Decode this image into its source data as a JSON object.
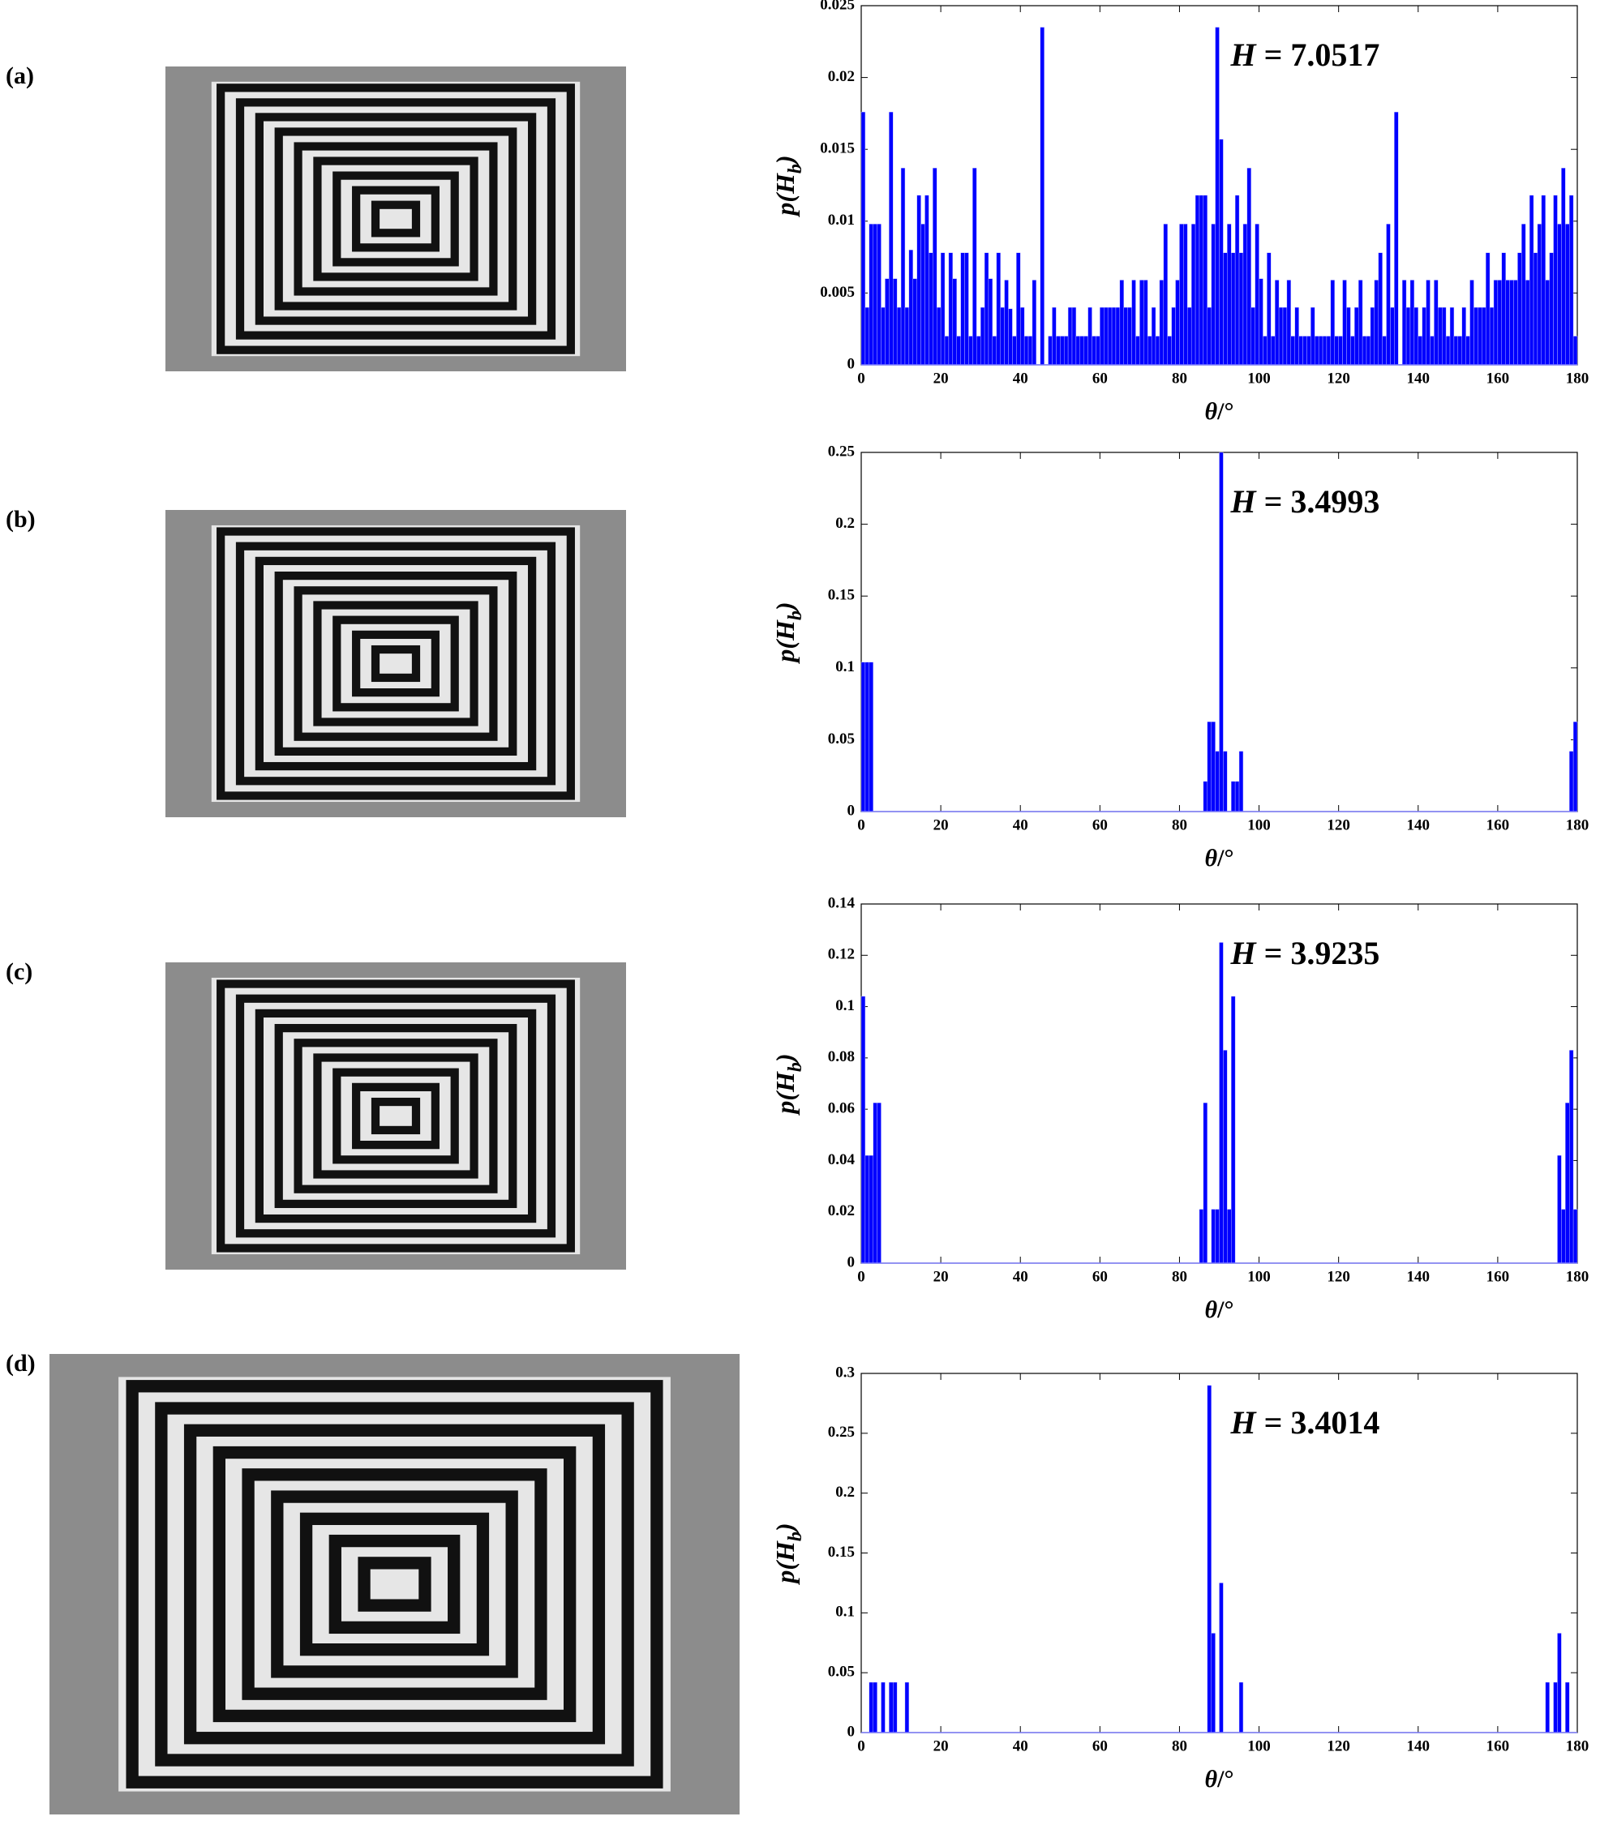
{
  "chart_data": [
    {
      "type": "histogram",
      "label": "(a)",
      "annotation": [
        "H",
        " = 7.0517"
      ],
      "xlabel": [
        "θ",
        "/°"
      ],
      "ylabel": [
        "p(H",
        "b",
        ")"
      ],
      "color": "#0000ff",
      "bins": [
        0,
        1,
        2,
        3,
        4,
        5,
        6,
        7,
        8,
        9,
        10,
        11,
        12,
        13,
        14,
        15,
        16,
        17,
        18,
        19,
        20,
        21,
        22,
        23,
        24,
        25,
        26,
        27,
        28,
        29,
        30,
        31,
        32,
        33,
        34,
        35,
        36,
        37,
        38,
        39,
        40,
        41,
        42,
        43,
        44,
        45,
        46,
        47,
        48,
        49,
        50,
        51,
        52,
        53,
        54,
        55,
        56,
        57,
        58,
        59,
        60,
        61,
        62,
        63,
        64,
        65,
        66,
        67,
        68,
        69,
        70,
        71,
        72,
        73,
        74,
        75,
        76,
        77,
        78,
        79,
        80,
        81,
        82,
        83,
        84,
        85,
        86,
        87,
        88,
        89,
        90,
        91,
        92,
        93,
        94,
        95,
        96,
        97,
        98,
        99,
        100,
        101,
        102,
        103,
        104,
        105,
        106,
        107,
        108,
        109,
        110,
        111,
        112,
        113,
        114,
        115,
        116,
        117,
        118,
        119,
        120,
        121,
        122,
        123,
        124,
        125,
        126,
        127,
        128,
        129,
        130,
        131,
        132,
        133,
        134,
        135,
        136,
        137,
        138,
        139,
        140,
        141,
        142,
        143,
        144,
        145,
        146,
        147,
        148,
        149,
        150,
        151,
        152,
        153,
        154,
        155,
        156,
        157,
        158,
        159,
        160,
        161,
        162,
        163,
        164,
        165,
        166,
        167,
        168,
        169,
        170,
        171,
        172,
        173,
        174,
        175,
        176,
        177,
        178,
        179,
        180
      ],
      "values": [
        0.0176,
        0.004,
        0.0098,
        0.0098,
        0.0098,
        0.004,
        0.006,
        0.0176,
        0.006,
        0.004,
        0.0137,
        0.004,
        0.008,
        0.006,
        0.0118,
        0.0098,
        0.0118,
        0.0078,
        0.0137,
        0.004,
        0.0078,
        0.002,
        0.0078,
        0.006,
        0.002,
        0.0078,
        0.0078,
        0.002,
        0.0137,
        0.002,
        0.004,
        0.0078,
        0.006,
        0.002,
        0.0078,
        0.004,
        0.0059,
        0.0039,
        0.002,
        0.0078,
        0.004,
        0.002,
        0.002,
        0.0059,
        0,
        0.0235,
        0,
        0.002,
        0.004,
        0.002,
        0.002,
        0.002,
        0.004,
        0.004,
        0.002,
        0.002,
        0.002,
        0.004,
        0.002,
        0.002,
        0.004,
        0.004,
        0.004,
        0.004,
        0.004,
        0.0059,
        0.004,
        0.004,
        0.0059,
        0.002,
        0.0059,
        0.0059,
        0.002,
        0.004,
        0.002,
        0.0059,
        0.0098,
        0.002,
        0.004,
        0.0059,
        0.0098,
        0.0098,
        0.004,
        0.0098,
        0.0118,
        0.0118,
        0.0118,
        0.004,
        0.0098,
        0.0235,
        0.0157,
        0.0078,
        0.0098,
        0.0078,
        0.0118,
        0.0078,
        0.0098,
        0.0137,
        0.004,
        0.0098,
        0.006,
        0.002,
        0.0078,
        0.002,
        0.0059,
        0.004,
        0.004,
        0.0059,
        0.002,
        0.004,
        0.002,
        0.002,
        0.002,
        0.004,
        0.002,
        0.002,
        0.002,
        0.002,
        0.0059,
        0.002,
        0.002,
        0.0059,
        0.004,
        0.002,
        0.004,
        0.0059,
        0.002,
        0.002,
        0.004,
        0.0059,
        0.0078,
        0.002,
        0.0098,
        0.004,
        0.0176,
        0,
        0.0059,
        0.004,
        0.0059,
        0.004,
        0.002,
        0.004,
        0.0059,
        0.002,
        0.0059,
        0.004,
        0.004,
        0.002,
        0.004,
        0.002,
        0.002,
        0.004,
        0.002,
        0.0059,
        0.004,
        0.004,
        0.004,
        0.0078,
        0.004,
        0.0059,
        0.0059,
        0.0078,
        0.0059,
        0.0059,
        0.0059,
        0.0078,
        0.0098,
        0.0059,
        0.0118,
        0.0078,
        0.0098,
        0.0118,
        0.0059,
        0.0078,
        0.0118,
        0.0098,
        0.0137,
        0.0098,
        0.0118,
        0.002
      ],
      "xlim": [
        0,
        180
      ],
      "xticks": [
        0,
        20,
        40,
        60,
        80,
        100,
        120,
        140,
        160,
        180
      ],
      "ylim": [
        0,
        0.025
      ],
      "yticks": [
        0,
        0.005,
        0.01,
        0.015,
        0.02,
        0.025
      ]
    },
    {
      "type": "bar",
      "label": "(b)",
      "annotation": [
        "H",
        " = 3.4993"
      ],
      "xlabel": [
        "θ",
        "/°"
      ],
      "ylabel": [
        "p(H",
        "b",
        ")"
      ],
      "color": "#0000ff",
      "x": [
        0.5,
        1.5,
        2.5,
        86.5,
        87.5,
        88.5,
        89.5,
        90.5,
        91.5,
        93.5,
        94.5,
        95.5,
        178.5,
        179.5
      ],
      "values": [
        0.104,
        0.104,
        0.104,
        0.021,
        0.0625,
        0.0625,
        0.042,
        0.25,
        0.042,
        0.021,
        0.021,
        0.042,
        0.042,
        0.0625
      ],
      "xlim": [
        0,
        180
      ],
      "xticks": [
        0,
        20,
        40,
        60,
        80,
        100,
        120,
        140,
        160,
        180
      ],
      "ylim": [
        0,
        0.25
      ],
      "yticks": [
        0,
        0.05,
        0.1,
        0.15,
        0.2,
        0.25
      ]
    },
    {
      "type": "bar",
      "label": "(c)",
      "annotation": [
        "H",
        " = 3.9235"
      ],
      "xlabel": [
        "θ",
        "/°"
      ],
      "ylabel": [
        "p(H",
        "b",
        ")"
      ],
      "color": "#0000ff",
      "x": [
        0.5,
        1.5,
        2.5,
        3.5,
        4.5,
        85.5,
        86.5,
        88.5,
        89.5,
        90.5,
        91.5,
        92.5,
        93.5,
        175.5,
        176.5,
        177.5,
        178.5,
        179.5
      ],
      "values": [
        0.104,
        0.042,
        0.042,
        0.0625,
        0.0625,
        0.021,
        0.0625,
        0.021,
        0.021,
        0.125,
        0.083,
        0.021,
        0.104,
        0.042,
        0.021,
        0.0625,
        0.083,
        0.021
      ],
      "xlim": [
        0,
        180
      ],
      "xticks": [
        0,
        20,
        40,
        60,
        80,
        100,
        120,
        140,
        160,
        180
      ],
      "ylim": [
        0,
        0.14
      ],
      "yticks": [
        0,
        0.02,
        0.04,
        0.06,
        0.08,
        0.1,
        0.12,
        0.14
      ]
    },
    {
      "type": "bar",
      "label": "(d)",
      "annotation": [
        "H",
        " = 3.4014"
      ],
      "xlabel": [
        "θ",
        "/°"
      ],
      "ylabel": [
        "p(H",
        "b",
        ")"
      ],
      "color": "#0000ff",
      "x": [
        2.5,
        3.5,
        5.5,
        7.5,
        8.5,
        11.5,
        87.5,
        88.5,
        90.5,
        95.5,
        172.5,
        174.5,
        175.5,
        177.5
      ],
      "values": [
        0.042,
        0.042,
        0.042,
        0.042,
        0.042,
        0.042,
        0.29,
        0.083,
        0.125,
        0.042,
        0.042,
        0.042,
        0.083,
        0.042
      ],
      "xlim": [
        0,
        180
      ],
      "xticks": [
        0,
        20,
        40,
        60,
        80,
        100,
        120,
        140,
        160,
        180
      ],
      "ylim": [
        0,
        0.3
      ],
      "yticks": [
        0,
        0.05,
        0.1,
        0.15,
        0.2,
        0.25,
        0.3
      ]
    }
  ]
}
